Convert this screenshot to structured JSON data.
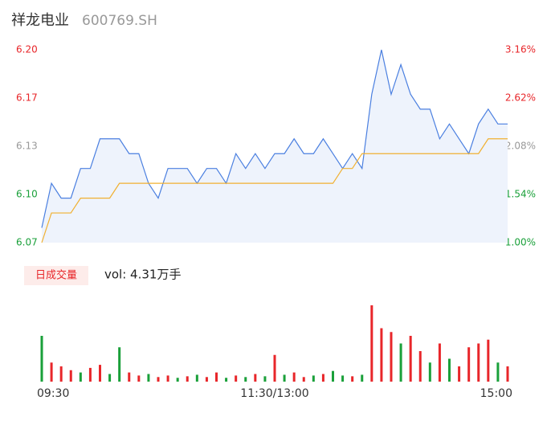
{
  "header": {
    "title": "祥龙电业",
    "code": "600769.SH"
  },
  "chart_data": {
    "type": "line",
    "x": [
      0,
      5,
      10,
      15,
      20,
      25,
      30,
      35,
      40,
      45,
      50,
      55,
      60,
      65,
      70,
      75,
      80,
      85,
      90,
      95,
      100,
      105,
      110,
      115,
      120,
      125,
      130,
      135,
      140,
      145,
      150,
      155,
      160,
      165,
      170,
      175,
      180,
      185,
      190,
      195,
      200,
      205,
      210,
      215,
      220,
      225,
      230,
      235,
      240
    ],
    "xlim": [
      0,
      240
    ],
    "xticks": [
      {
        "value": 0,
        "label": "09:30"
      },
      {
        "value": 120,
        "label": "11:30/13:00"
      },
      {
        "value": 240,
        "label": "15:00"
      }
    ],
    "series": [
      {
        "name": "price",
        "color": "#4a7fe0",
        "values": [
          6.08,
          6.11,
          6.1,
          6.1,
          6.12,
          6.12,
          6.14,
          6.14,
          6.14,
          6.13,
          6.13,
          6.11,
          6.1,
          6.12,
          6.12,
          6.12,
          6.11,
          6.12,
          6.12,
          6.11,
          6.13,
          6.12,
          6.13,
          6.12,
          6.13,
          6.13,
          6.14,
          6.13,
          6.13,
          6.14,
          6.13,
          6.12,
          6.13,
          6.12,
          6.17,
          6.2,
          6.17,
          6.19,
          6.17,
          6.16,
          6.16,
          6.14,
          6.15,
          6.14,
          6.13,
          6.15,
          6.16,
          6.15,
          6.15
        ]
      },
      {
        "name": "average",
        "color": "#f0b030",
        "values": [
          6.07,
          6.09,
          6.09,
          6.09,
          6.1,
          6.1,
          6.1,
          6.1,
          6.11,
          6.11,
          6.11,
          6.11,
          6.11,
          6.11,
          6.11,
          6.11,
          6.11,
          6.11,
          6.11,
          6.11,
          6.11,
          6.11,
          6.11,
          6.11,
          6.11,
          6.11,
          6.11,
          6.11,
          6.11,
          6.11,
          6.11,
          6.12,
          6.12,
          6.13,
          6.13,
          6.13,
          6.13,
          6.13,
          6.13,
          6.13,
          6.13,
          6.13,
          6.13,
          6.13,
          6.13,
          6.13,
          6.14,
          6.14,
          6.14
        ]
      }
    ],
    "ylim": [
      6.07,
      6.2
    ],
    "yticks": [
      6.07,
      {
        "value": 6.1025,
        "label": "6.10"
      },
      {
        "value": 6.135,
        "label": "6.13"
      },
      {
        "value": 6.1675,
        "label": "6.17"
      },
      {
        "value": 6.2,
        "label": "6.20"
      }
    ],
    "y2lim": [
      1.0,
      3.16
    ],
    "y2ticks": [
      {
        "value": 1.0,
        "label": "1.00%"
      },
      {
        "value": 1.54,
        "label": "1.54%"
      },
      {
        "value": 2.08,
        "label": "2.08%"
      },
      {
        "value": 2.62,
        "label": "2.62%"
      },
      {
        "value": 3.16,
        "label": "3.16%"
      }
    ],
    "up_color": "#e8262a",
    "down_color": "#1aa03a",
    "flat_color": "#999999",
    "volume": {
      "label": "日成交量",
      "summary": "vol: 4.31万手",
      "ylim": [
        0,
        100
      ],
      "values": [
        60,
        25,
        20,
        15,
        12,
        18,
        22,
        10,
        45,
        12,
        8,
        10,
        6,
        8,
        5,
        7,
        9,
        6,
        12,
        5,
        8,
        6,
        10,
        7,
        35,
        9,
        12,
        6,
        8,
        10,
        14,
        8,
        7,
        9,
        100,
        70,
        65,
        50,
        60,
        40,
        25,
        50,
        30,
        20,
        45,
        50,
        55,
        25,
        20
      ],
      "colors": [
        "#1aa03a",
        "#e8262a",
        "#e8262a",
        "#e8262a",
        "#1aa03a",
        "#e8262a",
        "#e8262a",
        "#1aa03a",
        "#1aa03a",
        "#e8262a",
        "#e8262a",
        "#1aa03a",
        "#e8262a",
        "#e8262a",
        "#1aa03a",
        "#e8262a",
        "#1aa03a",
        "#e8262a",
        "#e8262a",
        "#1aa03a",
        "#e8262a",
        "#1aa03a",
        "#e8262a",
        "#1aa03a",
        "#e8262a",
        "#1aa03a",
        "#e8262a",
        "#e8262a",
        "#1aa03a",
        "#e8262a",
        "#1aa03a",
        "#1aa03a",
        "#e8262a",
        "#1aa03a",
        "#e8262a",
        "#e8262a",
        "#e8262a",
        "#1aa03a",
        "#e8262a",
        "#e8262a",
        "#1aa03a",
        "#e8262a",
        "#1aa03a",
        "#e8262a",
        "#e8262a",
        "#e8262a",
        "#e8262a",
        "#1aa03a",
        "#e8262a"
      ]
    }
  }
}
